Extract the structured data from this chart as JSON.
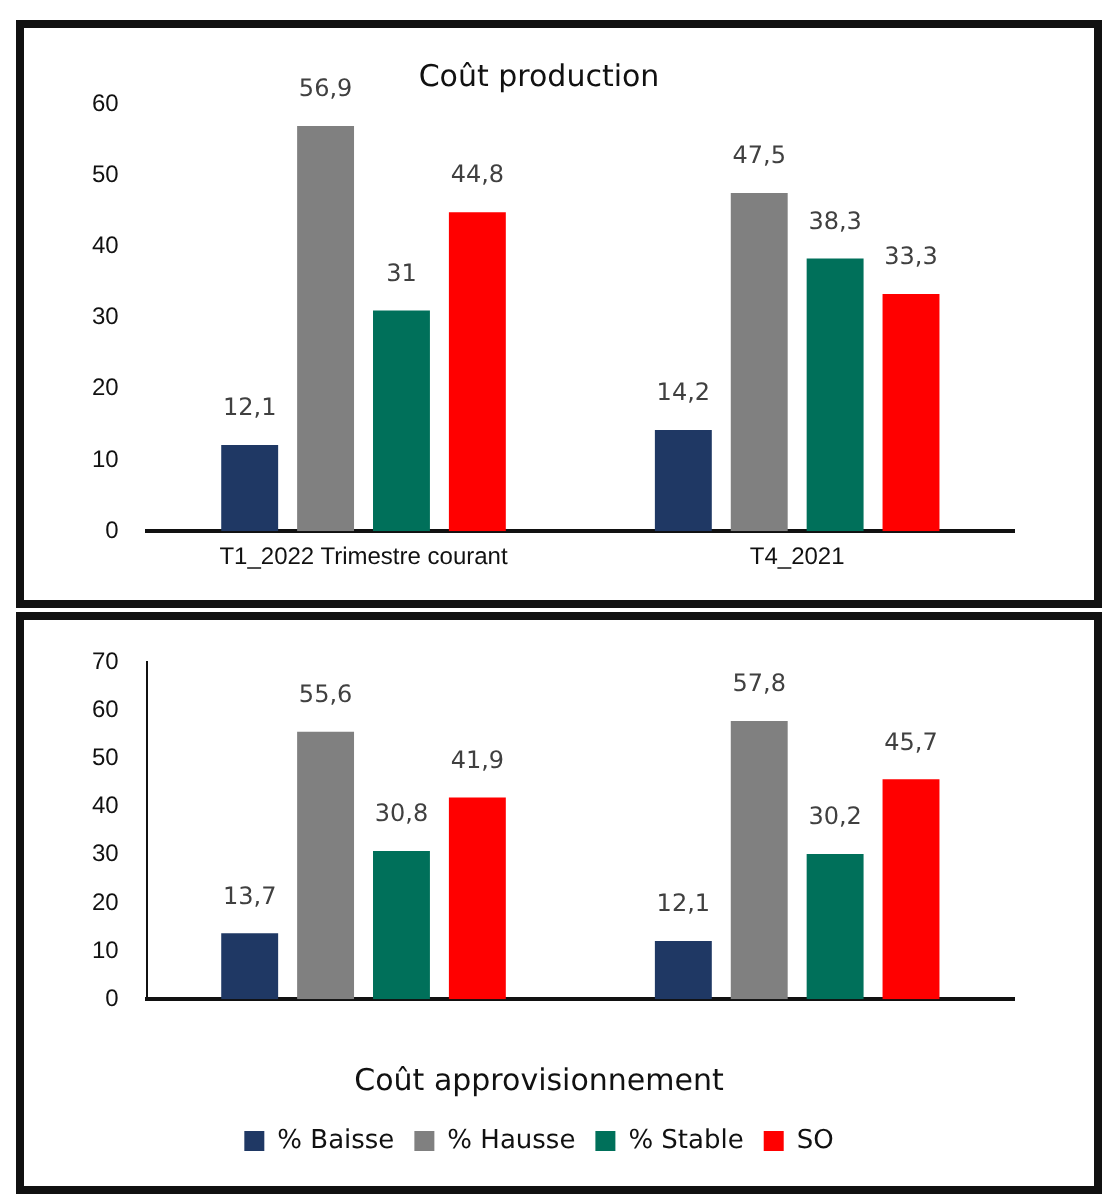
{
  "chart_data": [
    {
      "type": "bar",
      "title": "Coût production",
      "categories": [
        "T1_2022 Trimestre courant",
        "T4_2021"
      ],
      "series": [
        {
          "color": "#1f3864",
          "values": [
            12.1,
            14.2
          ],
          "value_labels": [
            "12,1",
            "14,2"
          ]
        },
        {
          "color": "#808080",
          "values": [
            56.9,
            47.5
          ],
          "value_labels": [
            "56,9",
            "47,5"
          ]
        },
        {
          "color": "#00705a",
          "values": [
            31,
            38.3
          ],
          "value_labels": [
            "31",
            "38,3"
          ]
        },
        {
          "color": "#ff0000",
          "values": [
            44.8,
            33.3
          ],
          "value_labels": [
            "44,8",
            "33,3"
          ]
        }
      ],
      "ylim": [
        0,
        60
      ],
      "yticks": [
        0,
        10,
        20,
        30,
        40,
        50,
        60
      ]
    },
    {
      "type": "bar",
      "title": "Coût approvisionnement",
      "categories": [
        null,
        null
      ],
      "series": [
        {
          "name": "% Baisse",
          "color": "#1f3864",
          "values": [
            13.7,
            12.1
          ],
          "value_labels": [
            "13,7",
            "12,1"
          ]
        },
        {
          "name": "% Hausse",
          "color": "#808080",
          "values": [
            55.6,
            57.8
          ],
          "value_labels": [
            "55,6",
            "57,8"
          ]
        },
        {
          "name": "% Stable",
          "color": "#00705a",
          "values": [
            30.8,
            30.2
          ],
          "value_labels": [
            "30,8",
            "30,2"
          ]
        },
        {
          "name": "SO",
          "color": "#ff0000",
          "values": [
            41.9,
            45.7
          ],
          "value_labels": [
            "41,9",
            "45,7"
          ]
        }
      ],
      "ylim": [
        0,
        70
      ],
      "yticks": [
        0,
        10,
        20,
        30,
        40,
        50,
        60,
        70
      ],
      "legend": "bottom"
    }
  ]
}
